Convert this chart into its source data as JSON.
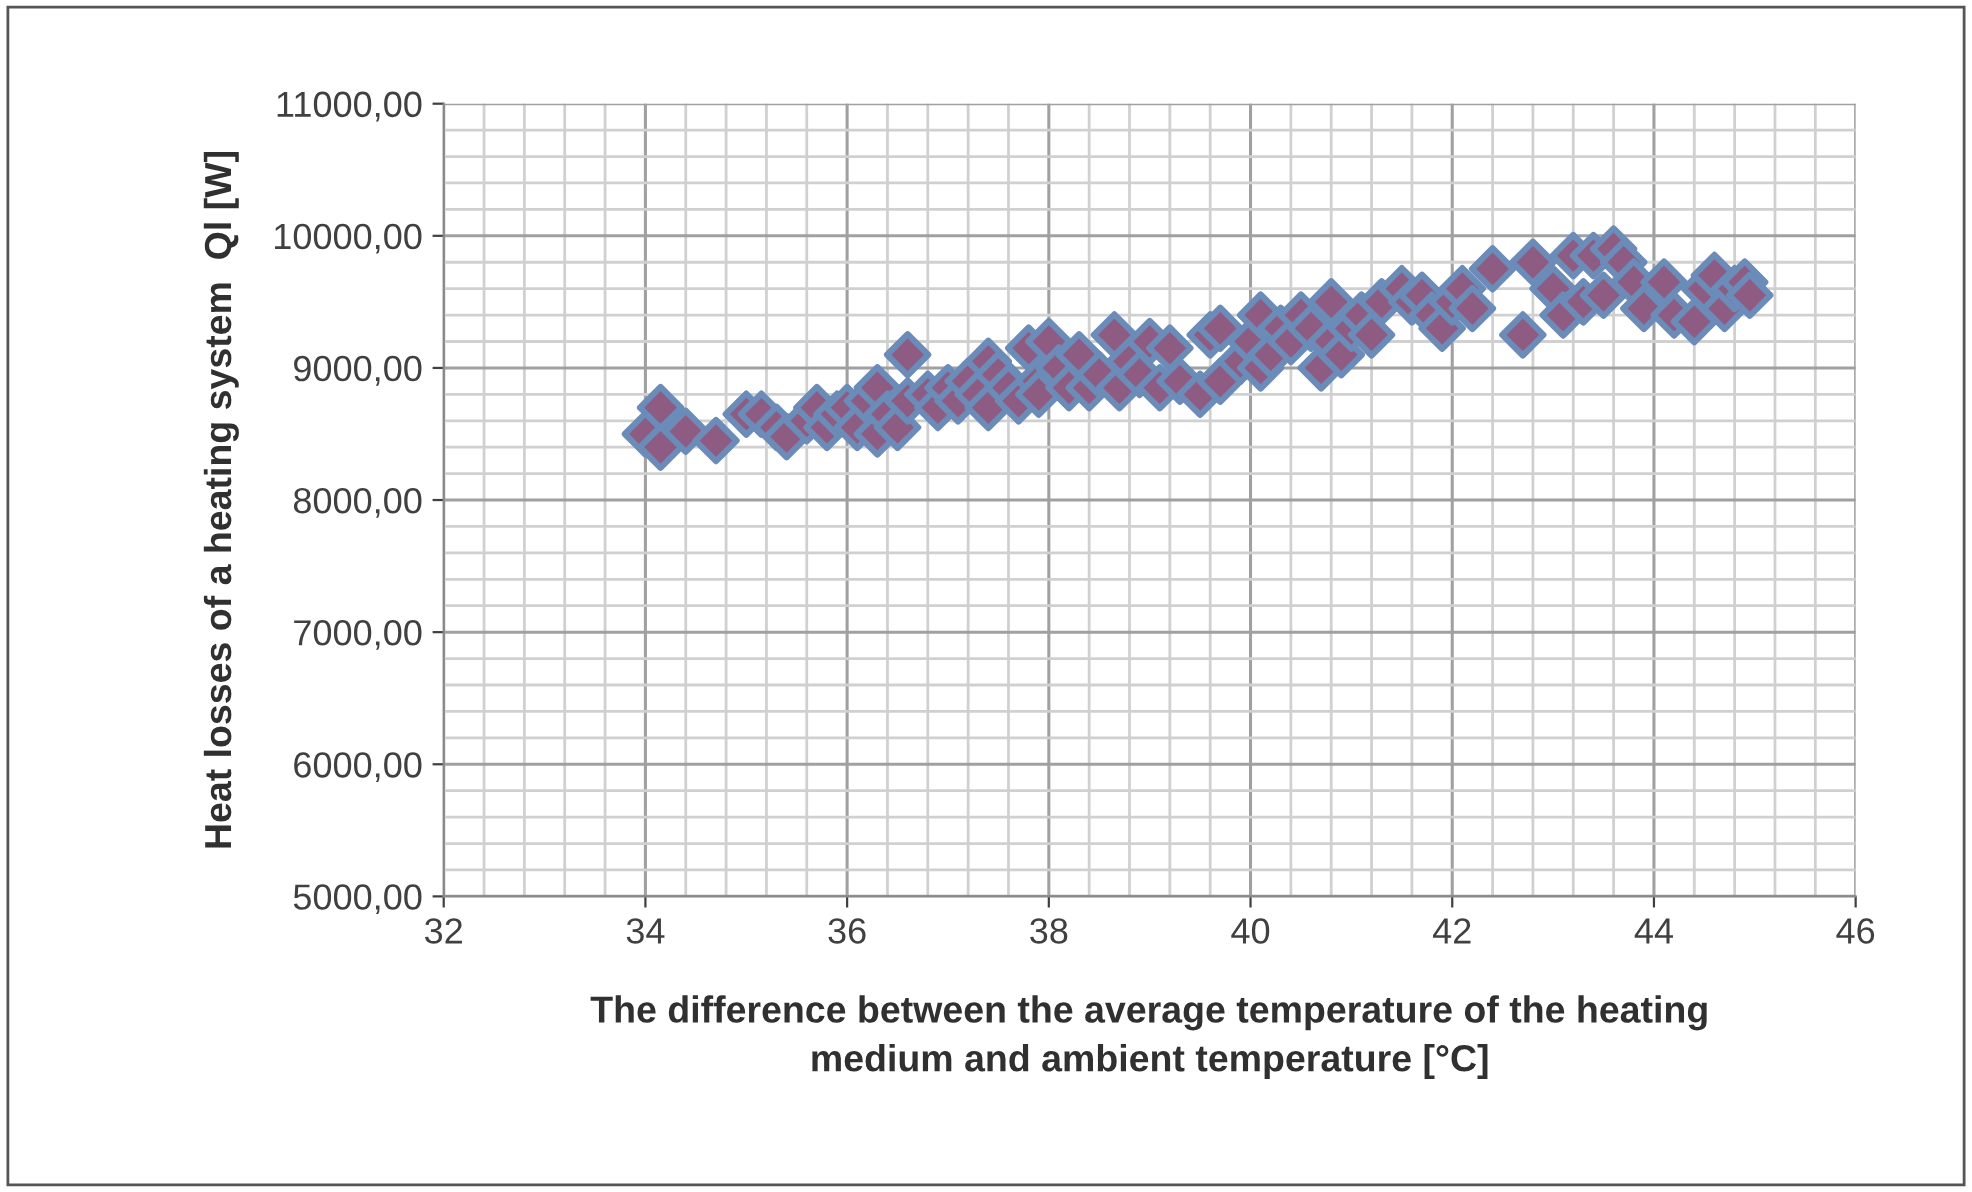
{
  "chart_data": {
    "type": "scatter",
    "xlabel": "The difference between the average temperature of the heating\nmedium and ambient temperature [°C]",
    "ylabel": "Heat losses of a heating system  Ql [W]",
    "x": [
      34.0,
      34.15,
      34.15,
      34.4,
      34.7,
      35.0,
      35.15,
      35.3,
      35.4,
      35.6,
      35.7,
      35.8,
      35.9,
      36.0,
      36.1,
      36.2,
      36.3,
      36.3,
      36.4,
      36.5,
      36.6,
      36.6,
      36.8,
      36.9,
      37.0,
      37.1,
      37.2,
      37.3,
      37.4,
      37.4,
      37.5,
      37.6,
      37.7,
      37.8,
      37.9,
      37.9,
      38.0,
      38.1,
      38.2,
      38.3,
      38.4,
      38.5,
      38.65,
      38.7,
      38.8,
      38.9,
      39.0,
      39.1,
      39.2,
      39.3,
      39.5,
      39.6,
      39.7,
      39.7,
      39.9,
      40.0,
      40.1,
      40.1,
      40.2,
      40.3,
      40.4,
      40.5,
      40.6,
      40.7,
      40.8,
      40.8,
      40.9,
      41.0,
      41.1,
      41.2,
      41.3,
      41.5,
      41.6,
      41.7,
      41.8,
      41.9,
      42.0,
      42.1,
      42.2,
      42.4,
      42.7,
      42.8,
      43.0,
      43.1,
      43.2,
      43.3,
      43.4,
      43.5,
      43.6,
      43.7,
      43.8,
      43.9,
      44.1,
      44.2,
      44.4,
      44.5,
      44.6,
      44.7,
      44.8,
      44.9,
      44.95
    ],
    "series": [
      {
        "color": "#8e5c82",
        "values": [
          8500,
          8700,
          8400,
          8520,
          8450,
          8650,
          8650,
          8550,
          8480,
          8600,
          8700,
          8550,
          8650,
          8700,
          8550,
          8750,
          8500,
          8850,
          8650,
          8550,
          9100,
          8750,
          8800,
          8700,
          8850,
          8750,
          8900,
          8800,
          9050,
          8700,
          8950,
          8850,
          8750,
          9150,
          8900,
          8800,
          9200,
          9000,
          8850,
          9100,
          8850,
          8950,
          9250,
          8850,
          9050,
          8950,
          9200,
          8850,
          9150,
          8900,
          8800,
          9250,
          9300,
          8900,
          9050,
          9200,
          9400,
          9000,
          9100,
          9300,
          9200,
          9400,
          9300,
          9000,
          9500,
          9200,
          9100,
          9300,
          9400,
          9250,
          9500,
          9600,
          9500,
          9550,
          9400,
          9300,
          9500,
          9600,
          9450,
          9750,
          9250,
          9800,
          9600,
          9400,
          9850,
          9500,
          9850,
          9550,
          9900,
          9800,
          9650,
          9450,
          9650,
          9400,
          9350,
          9600,
          9700,
          9450,
          9600,
          9650,
          9550
        ]
      }
    ],
    "xlim": [
      32,
      46
    ],
    "xticks": [
      32,
      34,
      36,
      38,
      40,
      42,
      44,
      46
    ],
    "ylim": [
      5000,
      11000
    ],
    "yticks": [
      {
        "value": 5000,
        "label": "5000,00"
      },
      {
        "value": 6000,
        "label": "6000,00"
      },
      {
        "value": 7000,
        "label": "7000,00"
      },
      {
        "value": 8000,
        "label": "8000,00"
      },
      {
        "value": 9000,
        "label": "9000,00"
      },
      {
        "value": 10000,
        "label": "10000,00"
      },
      {
        "value": 11000,
        "label": "11000,00"
      }
    ],
    "grid": true,
    "marker": "diamond",
    "legend": false
  }
}
